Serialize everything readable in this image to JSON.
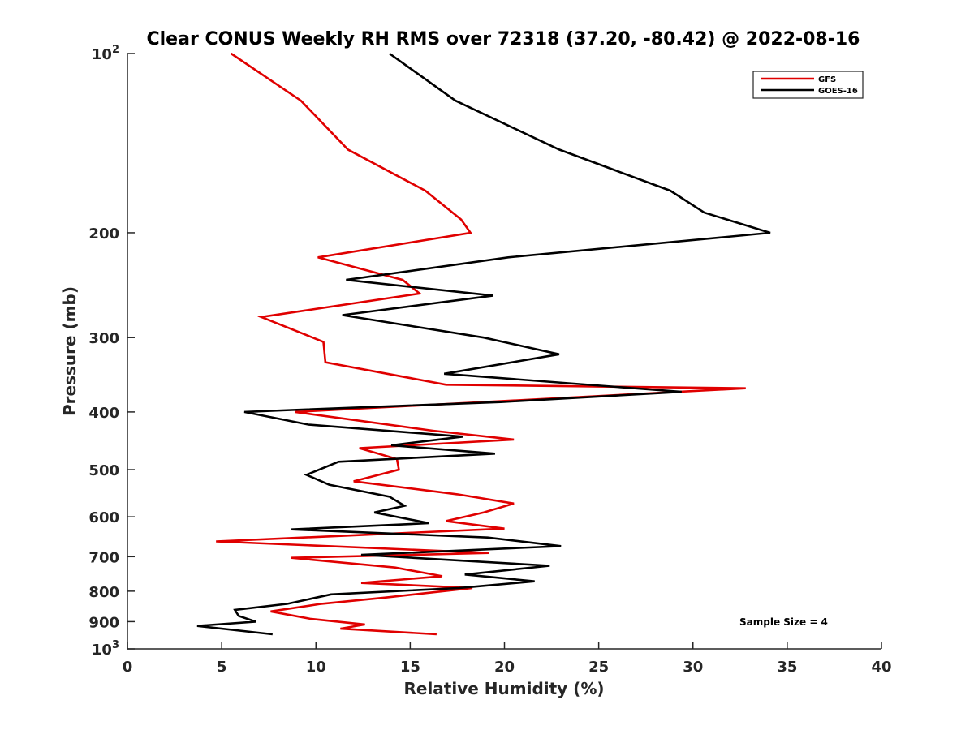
{
  "chart_data": {
    "type": "line",
    "title": "Clear CONUS Weekly RH RMS over 72318 (37.20, -80.42) @ 2022-08-16",
    "xlabel": "Relative Humidity (%)",
    "ylabel": "Pressure (mb)",
    "xlim": [
      0,
      40
    ],
    "ylim": [
      100,
      1000
    ],
    "y_scale": "log",
    "y_reversed": true,
    "x_ticks": [
      0,
      5,
      10,
      15,
      20,
      25,
      30,
      35,
      40
    ],
    "x_tick_labels": [
      "0",
      "5",
      "10",
      "15",
      "20",
      "25",
      "30",
      "35",
      "40"
    ],
    "y_ticks": [
      100,
      200,
      300,
      400,
      500,
      600,
      700,
      800,
      900,
      1000
    ],
    "y_tick_labels": [
      {
        "base": "10",
        "exp": "2"
      },
      {
        "base": "200"
      },
      {
        "base": "300"
      },
      {
        "base": "400"
      },
      {
        "base": "500"
      },
      {
        "base": "600"
      },
      {
        "base": "700"
      },
      {
        "base": "800"
      },
      {
        "base": "900"
      },
      {
        "base": "10",
        "exp": "3"
      }
    ],
    "grid": false,
    "legend_position": "top-right",
    "annotation": "Sample Size = 4",
    "series": [
      {
        "name": "GFS",
        "color": "#e00000",
        "x": [
          5.5,
          9.2,
          11.7,
          15.8,
          17.7,
          18.2,
          10.1,
          14.6,
          15.5,
          7.1,
          10.4,
          10.5,
          16.9,
          32.8,
          8.9,
          16.2,
          20.5,
          12.3,
          14.3,
          14.4,
          12.0,
          17.5,
          20.5,
          18.9,
          16.9,
          20.0,
          4.7,
          19.2,
          8.7,
          14.2,
          16.7,
          12.4,
          18.3,
          13.7,
          10.3,
          7.6,
          9.7,
          12.6,
          11.3,
          16.4
        ],
        "y": [
          100,
          120,
          145,
          170,
          190,
          200,
          220,
          240,
          253,
          277,
          305,
          330,
          360,
          365,
          400,
          430,
          445,
          460,
          480,
          500,
          523,
          550,
          570,
          590,
          610,
          628,
          660,
          690,
          703,
          730,
          755,
          775,
          790,
          820,
          840,
          865,
          890,
          910,
          925,
          945
        ]
      },
      {
        "name": "GOES-16",
        "color": "#000000",
        "x": [
          13.9,
          17.4,
          22.9,
          28.8,
          30.6,
          34.1,
          20.2,
          11.6,
          19.4,
          11.4,
          18.9,
          22.9,
          16.8,
          29.4,
          19.8,
          8.7,
          6.2,
          9.6,
          17.8,
          14.0,
          19.5,
          11.2,
          9.5,
          10.7,
          13.9,
          14.7,
          13.1,
          16.0,
          8.7,
          19.1,
          23.0,
          12.4,
          22.4,
          17.9,
          21.6,
          17.6,
          10.8,
          8.5,
          5.7,
          5.9,
          6.8,
          3.7,
          7.7
        ],
        "y": [
          100,
          120,
          145,
          170,
          185,
          200,
          220,
          240,
          255,
          275,
          300,
          320,
          345,
          370,
          385,
          397,
          400,
          420,
          440,
          455,
          470,
          485,
          510,
          530,
          555,
          575,
          590,
          615,
          630,
          650,
          672,
          695,
          725,
          750,
          770,
          790,
          810,
          840,
          860,
          880,
          900,
          915,
          945
        ]
      }
    ]
  }
}
